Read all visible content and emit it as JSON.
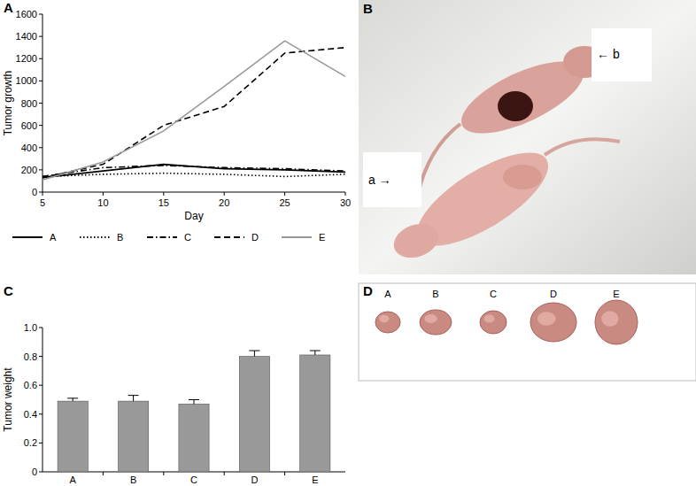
{
  "chart_data": [
    {
      "type": "line",
      "title": "A",
      "x_label": "Day",
      "y_label": "Tumor growth",
      "x": [
        5,
        10,
        15,
        20,
        25,
        30
      ],
      "xlim": [
        5,
        30
      ],
      "xticks": [
        5,
        10,
        15,
        20,
        25,
        30
      ],
      "ylim": [
        0,
        1600
      ],
      "yticks": [
        0,
        200,
        400,
        600,
        800,
        1000,
        1200,
        1400,
        1600
      ],
      "grid": false,
      "legend": "bottom",
      "series": [
        {
          "name": "A",
          "color": "#000000",
          "line_style": "solid",
          "values": [
            130,
            190,
            250,
            210,
            200,
            180
          ]
        },
        {
          "name": "B",
          "color": "#000000",
          "line_style": "dotted",
          "values": [
            140,
            160,
            170,
            160,
            140,
            160
          ]
        },
        {
          "name": "C",
          "color": "#000000",
          "line_style": "dashdot",
          "values": [
            140,
            220,
            240,
            220,
            210,
            190
          ]
        },
        {
          "name": "D",
          "color": "#000000",
          "line_style": "dashed",
          "values": [
            130,
            250,
            600,
            770,
            1250,
            1300
          ]
        },
        {
          "name": "E",
          "color": "#999999",
          "line_style": "solid",
          "values": [
            110,
            270,
            550,
            950,
            1360,
            1040
          ]
        }
      ]
    },
    {
      "type": "bar",
      "title": "C",
      "y_label": "Tumor weight",
      "categories": [
        "A",
        "B",
        "C",
        "D",
        "E"
      ],
      "values": [
        0.49,
        0.49,
        0.47,
        0.8,
        0.81
      ],
      "errors": [
        0.02,
        0.04,
        0.03,
        0.04,
        0.03
      ],
      "color": "#999999",
      "grid": false,
      "ylim": [
        0,
        1
      ],
      "yticks": [
        0,
        0.2,
        0.4,
        0.6,
        0.8,
        {
          "value": 1,
          "label": "1.0"
        }
      ]
    }
  ],
  "photos": [
    {
      "title": "B",
      "labels": [
        "a →",
        "← b"
      ]
    },
    {
      "title": "D",
      "labels": [
        "A",
        "B",
        "C",
        "D",
        "E"
      ]
    }
  ]
}
